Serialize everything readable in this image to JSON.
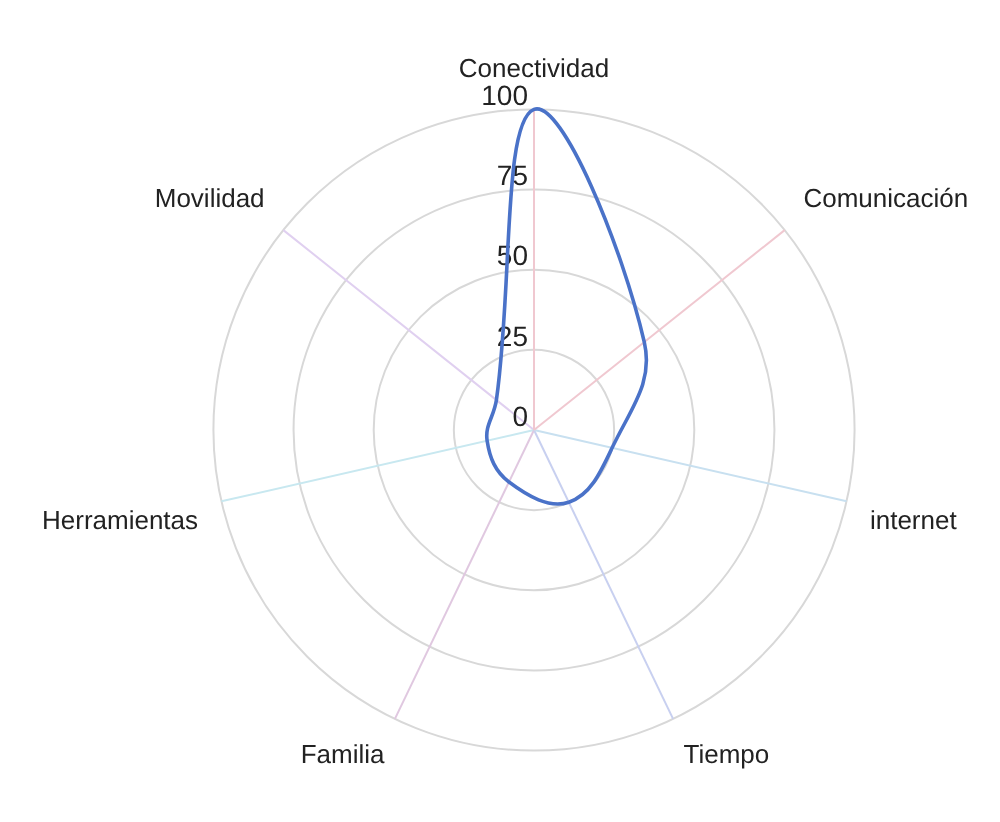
{
  "chart_data": {
    "type": "radar",
    "categories": [
      "Conectividad",
      "Comunicación",
      "internet",
      "Tiempo",
      "Familia",
      "Herramientas",
      "Movilidad"
    ],
    "series": [
      {
        "color": "#4a72c8",
        "values": [
          100,
          44,
          25,
          25,
          18,
          15,
          15
        ]
      }
    ],
    "ylim": [
      0,
      100
    ],
    "yticks": [
      0,
      25,
      50,
      75,
      100
    ],
    "grid": true,
    "legend": false,
    "marker": "none",
    "line_style": "solid"
  }
}
